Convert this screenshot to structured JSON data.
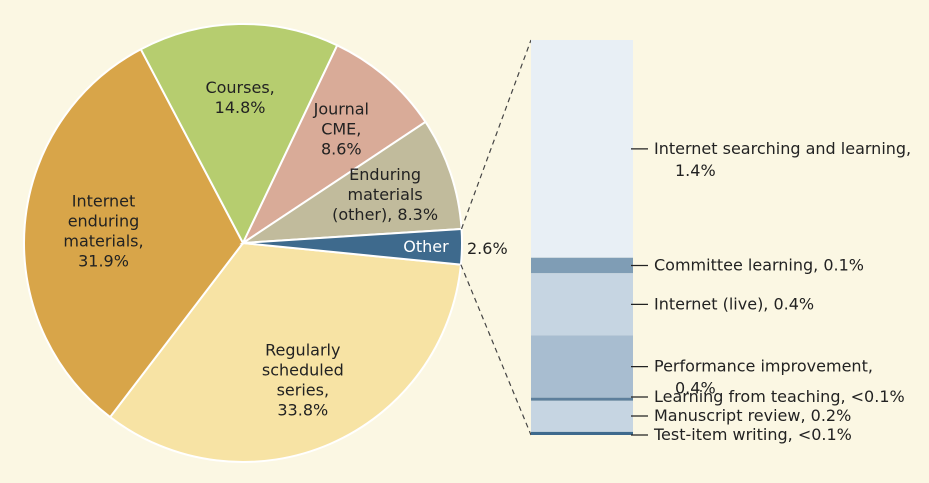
{
  "chart_data": {
    "type": "pie",
    "title": "",
    "slices": [
      {
        "label_lines": [
          "Regularly",
          "scheduled",
          "series,",
          "33.8%"
        ],
        "value": 33.8,
        "color": "#f7e3a4"
      },
      {
        "label_lines": [
          "Internet",
          "enduring",
          "materials,",
          "31.9%"
        ],
        "value": 31.9,
        "color": "#d8a549"
      },
      {
        "label_lines": [
          "Courses,",
          "14.8%"
        ],
        "value": 14.8,
        "color": "#b6cd6f"
      },
      {
        "label_lines": [
          "Journal",
          "CME,",
          "8.6%"
        ],
        "value": 8.6,
        "color": "#d9ab98"
      },
      {
        "label_lines": [
          "Enduring",
          "materials",
          "(other), 8.3%"
        ],
        "value": 8.3,
        "color": "#c1bb9c"
      },
      {
        "label_lines": [
          "Other"
        ],
        "value": 2.6,
        "color": "#3e6a8d"
      }
    ],
    "other_total_label": "2.6%",
    "breakdown": {
      "type": "stacked-bar",
      "items": [
        {
          "label_lines": [
            "Internet searching and learning,",
            "1.4%"
          ],
          "value": 1.4,
          "color": "#e8eff5"
        },
        {
          "label_lines": [
            "Committee learning, 0.1%"
          ],
          "value": 0.1,
          "color": "#7f9db5"
        },
        {
          "label_lines": [
            "Internet (live), 0.4%"
          ],
          "value": 0.4,
          "color": "#c6d5e2"
        },
        {
          "label_lines": [
            "Performance improvement,",
            "0.4%"
          ],
          "value": 0.4,
          "color": "#a8bdd0"
        },
        {
          "label_lines": [
            "Learning from teaching, <0.1%"
          ],
          "value": 0.02,
          "color": "#5d7f9c"
        },
        {
          "label_lines": [
            "Manuscript review, 0.2%"
          ],
          "value": 0.2,
          "color": "#c6d5e2"
        },
        {
          "label_lines": [
            "Test-item writing, <0.1%"
          ],
          "value": 0.02,
          "color": "#3e6a8d"
        }
      ]
    }
  }
}
